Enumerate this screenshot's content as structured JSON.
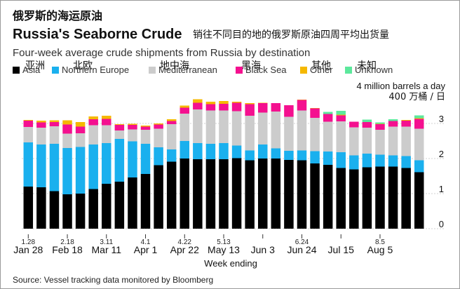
{
  "header": {
    "zh_title": "俄罗斯的海运原油",
    "title": "Russia's Seaborne Crude",
    "zh_subtitle": "销往不同目的地的俄罗斯原油四周平均出货量",
    "subtitle": "Four-week average crude shipments from Russia by destination"
  },
  "legend": [
    {
      "zh": "亚洲",
      "en": "Asia",
      "color": "#000000"
    },
    {
      "zh": "北欧",
      "en": "Northern Europe",
      "color": "#1ab0ee"
    },
    {
      "zh": "地中海",
      "en": "Mediterranean",
      "color": "#cccccc"
    },
    {
      "zh": "黑海",
      "en": "Black Sea",
      "color": "#f4108f"
    },
    {
      "zh": "其他",
      "en": "Other",
      "color": "#f5b800"
    },
    {
      "zh": "未知",
      "en": "Unknown",
      "color": "#5ce89c"
    }
  ],
  "units": {
    "en": "4 million barrels a day",
    "zh": "400 万桶 / 日"
  },
  "footer": {
    "xlabel": "Week ending",
    "source": "Source: Vessel tracking data monitored by Bloomberg"
  },
  "chart_data": {
    "type": "bar",
    "stacked": true,
    "ylim": [
      0,
      4
    ],
    "yticks": [
      "0",
      "1",
      "2",
      "3"
    ],
    "xticks": [
      {
        "index": 0,
        "small": "1.28",
        "label": "Jan 28"
      },
      {
        "index": 3,
        "small": "2.18",
        "label": "Feb 18"
      },
      {
        "index": 6,
        "small": "3.11",
        "label": "Mar 11"
      },
      {
        "index": 9,
        "small": "4.1",
        "label": "Apr 1"
      },
      {
        "index": 12,
        "small": "4.22",
        "label": "Apr 22"
      },
      {
        "index": 15,
        "small": "5.13",
        "label": "May 13"
      },
      {
        "index": 18,
        "small": "",
        "label": "Jun 3"
      },
      {
        "index": 21,
        "small": "6.24",
        "label": "Jun 24"
      },
      {
        "index": 24,
        "small": "",
        "label": "Jul 15"
      },
      {
        "index": 27,
        "small": "8.5",
        "label": "Aug 5"
      }
    ],
    "series": [
      {
        "name": "Asia",
        "color": "#000000",
        "values": [
          1.2,
          1.18,
          1.07,
          0.98,
          1.0,
          1.13,
          1.28,
          1.34,
          1.46,
          1.56,
          1.81,
          1.91,
          2.0,
          1.98,
          1.98,
          1.98,
          2.01,
          1.95,
          2.0,
          2.0,
          1.96,
          1.95,
          1.86,
          1.82,
          1.73,
          1.69,
          1.75,
          1.77,
          1.77,
          1.73,
          1.61
        ]
      },
      {
        "name": "Northern Europe",
        "color": "#1ab0ee",
        "values": [
          1.26,
          1.22,
          1.35,
          1.32,
          1.33,
          1.27,
          1.16,
          1.22,
          1.03,
          0.86,
          0.51,
          0.35,
          0.5,
          0.46,
          0.44,
          0.46,
          0.36,
          0.28,
          0.4,
          0.29,
          0.26,
          0.28,
          0.35,
          0.38,
          0.45,
          0.4,
          0.39,
          0.34,
          0.32,
          0.34,
          0.34
        ]
      },
      {
        "name": "Mediterranean",
        "color": "#cccccc",
        "values": [
          0.44,
          0.48,
          0.5,
          0.41,
          0.39,
          0.55,
          0.51,
          0.24,
          0.34,
          0.4,
          0.53,
          0.72,
          0.78,
          0.96,
          0.95,
          0.93,
          0.98,
          0.99,
          0.91,
          1.05,
          0.97,
          1.14,
          0.95,
          0.85,
          0.88,
          0.8,
          0.74,
          0.71,
          0.82,
          0.84,
          0.9
        ]
      },
      {
        "name": "Black Sea",
        "color": "#f4108f",
        "values": [
          0.18,
          0.15,
          0.12,
          0.26,
          0.19,
          0.17,
          0.18,
          0.16,
          0.13,
          0.09,
          0.12,
          0.09,
          0.17,
          0.19,
          0.18,
          0.19,
          0.24,
          0.33,
          0.27,
          0.24,
          0.33,
          0.3,
          0.27,
          0.22,
          0.17,
          0.16,
          0.16,
          0.16,
          0.16,
          0.17,
          0.28
        ]
      },
      {
        "name": "Other",
        "color": "#f5b800",
        "values": [
          0.02,
          0.05,
          0.05,
          0.12,
          0.13,
          0.08,
          0.09,
          0.02,
          0.03,
          0.03,
          0.03,
          0.05,
          0.06,
          0.1,
          0.07,
          0.08,
          0.03,
          0.03,
          0.01,
          0.0,
          0.0,
          0.01,
          0.01,
          0.0,
          0.02,
          0.0,
          0.0,
          0.01,
          0.0,
          0.02,
          0.02
        ]
      },
      {
        "name": "Unknown",
        "color": "#5ce89c",
        "values": [
          0,
          0,
          0,
          0,
          0,
          0,
          0,
          0,
          0,
          0,
          0,
          0,
          0,
          0,
          0,
          0,
          0,
          0,
          0,
          0,
          0,
          0,
          0,
          0.06,
          0.11,
          0,
          0.07,
          0.04,
          0.05,
          0,
          0.08
        ]
      }
    ]
  }
}
